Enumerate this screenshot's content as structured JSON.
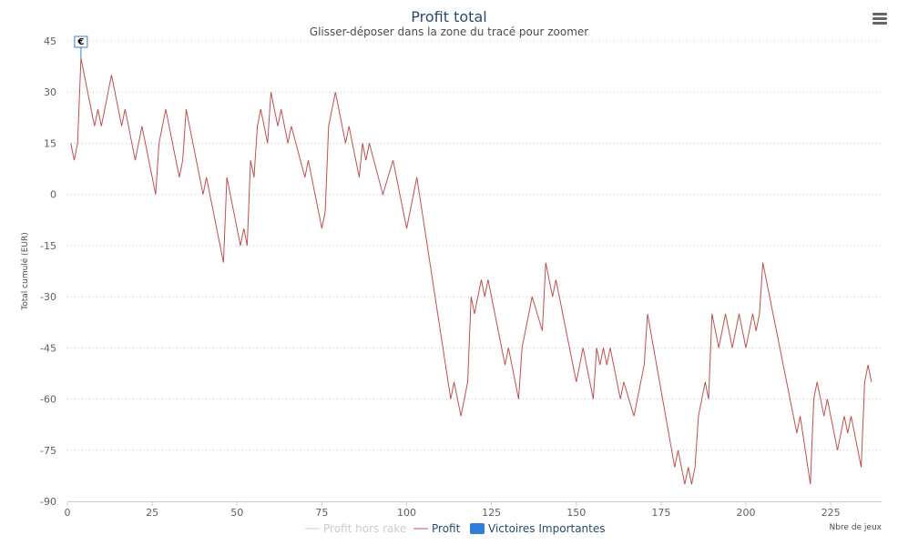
{
  "chart_data": {
    "type": "line",
    "title": "Profit total",
    "subtitle": "Glisser-déposer dans la zone du tracé pour zoomer",
    "ylabel": "Total cumulé (EUR)",
    "xlabel": "Nbre de jeux",
    "xlim": [
      0,
      240
    ],
    "ylim": [
      -90,
      45
    ],
    "x_ticks": [
      0,
      25,
      50,
      75,
      100,
      125,
      150,
      175,
      200,
      225
    ],
    "y_ticks": [
      45,
      30,
      15,
      0,
      -15,
      -30,
      -45,
      -60,
      -75,
      -90
    ],
    "grid": "horizontal dotted",
    "legend_position": "bottom-center",
    "series": [
      {
        "name": "Profit hors rake",
        "color": "#cccccc",
        "visible": false,
        "points": []
      },
      {
        "name": "Profit",
        "color": "#c0504d",
        "visible": true,
        "points": [
          [
            1,
            15
          ],
          [
            2,
            10
          ],
          [
            3,
            15
          ],
          [
            4,
            40
          ],
          [
            5,
            35
          ],
          [
            6,
            30
          ],
          [
            7,
            25
          ],
          [
            8,
            20
          ],
          [
            9,
            25
          ],
          [
            10,
            20
          ],
          [
            12,
            30
          ],
          [
            13,
            35
          ],
          [
            14,
            30
          ],
          [
            16,
            20
          ],
          [
            17,
            25
          ],
          [
            18,
            20
          ],
          [
            20,
            10
          ],
          [
            22,
            20
          ],
          [
            25,
            5
          ],
          [
            26,
            0
          ],
          [
            27,
            15
          ],
          [
            29,
            25
          ],
          [
            33,
            5
          ],
          [
            34,
            10
          ],
          [
            35,
            25
          ],
          [
            37,
            15
          ],
          [
            40,
            0
          ],
          [
            41,
            5
          ],
          [
            46,
            -20
          ],
          [
            47,
            5
          ],
          [
            51,
            -15
          ],
          [
            52,
            -10
          ],
          [
            53,
            -15
          ],
          [
            54,
            10
          ],
          [
            55,
            5
          ],
          [
            56,
            20
          ],
          [
            57,
            25
          ],
          [
            59,
            15
          ],
          [
            60,
            30
          ],
          [
            62,
            20
          ],
          [
            63,
            25
          ],
          [
            65,
            15
          ],
          [
            66,
            20
          ],
          [
            70,
            5
          ],
          [
            71,
            10
          ],
          [
            75,
            -10
          ],
          [
            76,
            -5
          ],
          [
            77,
            20
          ],
          [
            79,
            30
          ],
          [
            81,
            20
          ],
          [
            82,
            15
          ],
          [
            83,
            20
          ],
          [
            86,
            5
          ],
          [
            87,
            15
          ],
          [
            88,
            10
          ],
          [
            89,
            15
          ],
          [
            93,
            0
          ],
          [
            96,
            10
          ],
          [
            100,
            -10
          ],
          [
            103,
            5
          ],
          [
            113,
            -60
          ],
          [
            114,
            -55
          ],
          [
            116,
            -65
          ],
          [
            118,
            -55
          ],
          [
            119,
            -30
          ],
          [
            120,
            -35
          ],
          [
            121,
            -30
          ],
          [
            122,
            -25
          ],
          [
            123,
            -30
          ],
          [
            124,
            -25
          ],
          [
            129,
            -50
          ],
          [
            130,
            -45
          ],
          [
            133,
            -60
          ],
          [
            134,
            -45
          ],
          [
            137,
            -30
          ],
          [
            140,
            -40
          ],
          [
            141,
            -20
          ],
          [
            143,
            -30
          ],
          [
            144,
            -25
          ],
          [
            150,
            -55
          ],
          [
            152,
            -45
          ],
          [
            155,
            -60
          ],
          [
            156,
            -45
          ],
          [
            157,
            -50
          ],
          [
            158,
            -45
          ],
          [
            159,
            -50
          ],
          [
            160,
            -45
          ],
          [
            163,
            -60
          ],
          [
            164,
            -55
          ],
          [
            167,
            -65
          ],
          [
            170,
            -50
          ],
          [
            171,
            -35
          ],
          [
            179,
            -80
          ],
          [
            180,
            -75
          ],
          [
            182,
            -85
          ],
          [
            183,
            -80
          ],
          [
            184,
            -85
          ],
          [
            185,
            -80
          ],
          [
            186,
            -65
          ],
          [
            188,
            -55
          ],
          [
            189,
            -60
          ],
          [
            190,
            -35
          ],
          [
            192,
            -45
          ],
          [
            194,
            -35
          ],
          [
            196,
            -45
          ],
          [
            198,
            -35
          ],
          [
            200,
            -45
          ],
          [
            202,
            -35
          ],
          [
            203,
            -40
          ],
          [
            204,
            -35
          ],
          [
            205,
            -20
          ],
          [
            215,
            -70
          ],
          [
            216,
            -65
          ],
          [
            219,
            -85
          ],
          [
            220,
            -60
          ],
          [
            221,
            -55
          ],
          [
            223,
            -65
          ],
          [
            224,
            -60
          ],
          [
            227,
            -75
          ],
          [
            229,
            -65
          ],
          [
            230,
            -70
          ],
          [
            231,
            -65
          ],
          [
            234,
            -80
          ],
          [
            235,
            -55
          ],
          [
            236,
            -50
          ],
          [
            237,
            -55
          ]
        ]
      },
      {
        "name": "Victoires Importantes",
        "color": "#2f7ed8",
        "visible": true,
        "flags": [
          {
            "x": 4,
            "y": 40,
            "label": "€"
          }
        ]
      }
    ]
  }
}
